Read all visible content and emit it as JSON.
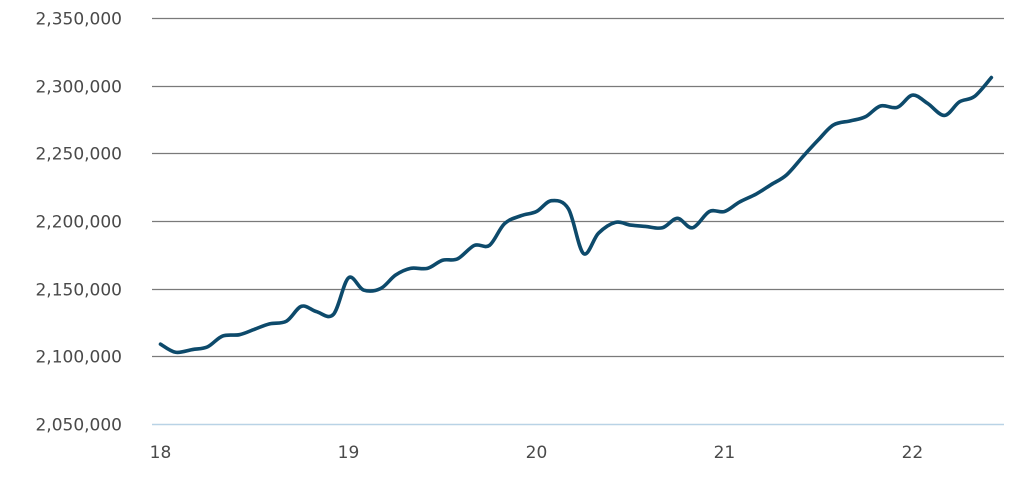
{
  "colors": {
    "line": "#0d4a6b",
    "grid": "#7a7a7a",
    "baseline": "#b9d3e6",
    "text": "#4a4a4a"
  },
  "chart_data": {
    "type": "line",
    "title": "",
    "xlabel": "",
    "ylabel": "",
    "grid": true,
    "xlim": [
      18,
      22.45
    ],
    "ylim": [
      2050000,
      2350000
    ],
    "x_ticks": [
      18,
      19,
      20,
      21,
      22
    ],
    "x_tick_labels": [
      "18",
      "19",
      "20",
      "21",
      "22"
    ],
    "y_ticks": [
      2050000,
      2100000,
      2150000,
      2200000,
      2250000,
      2300000,
      2350000
    ],
    "y_tick_labels": [
      "2,050,000",
      "2,100,000",
      "2,150,000",
      "2,200,000",
      "2,250,000",
      "2,300,000",
      "2,350,000"
    ],
    "series": [
      {
        "values": [
          [
            18.0,
            2109000
          ],
          [
            18.08,
            2103000
          ],
          [
            18.17,
            2105000
          ],
          [
            18.25,
            2107000
          ],
          [
            18.33,
            2115000
          ],
          [
            18.42,
            2116000
          ],
          [
            18.5,
            2120000
          ],
          [
            18.58,
            2124000
          ],
          [
            18.67,
            2126000
          ],
          [
            18.75,
            2137000
          ],
          [
            18.83,
            2133000
          ],
          [
            18.92,
            2131000
          ],
          [
            19.0,
            2158000
          ],
          [
            19.08,
            2149000
          ],
          [
            19.17,
            2150000
          ],
          [
            19.25,
            2160000
          ],
          [
            19.33,
            2165000
          ],
          [
            19.42,
            2165000
          ],
          [
            19.5,
            2171000
          ],
          [
            19.58,
            2172000
          ],
          [
            19.67,
            2182000
          ],
          [
            19.75,
            2182000
          ],
          [
            19.83,
            2198000
          ],
          [
            19.92,
            2204000
          ],
          [
            20.0,
            2207000
          ],
          [
            20.08,
            2215000
          ],
          [
            20.17,
            2209000
          ],
          [
            20.25,
            2176000
          ],
          [
            20.33,
            2191000
          ],
          [
            20.42,
            2199000
          ],
          [
            20.5,
            2197000
          ],
          [
            20.58,
            2196000
          ],
          [
            20.67,
            2195000
          ],
          [
            20.75,
            2202000
          ],
          [
            20.83,
            2195000
          ],
          [
            20.92,
            2207000
          ],
          [
            21.0,
            2207000
          ],
          [
            21.08,
            2214000
          ],
          [
            21.17,
            2220000
          ],
          [
            21.25,
            2227000
          ],
          [
            21.33,
            2234000
          ],
          [
            21.42,
            2248000
          ],
          [
            21.5,
            2260000
          ],
          [
            21.58,
            2271000
          ],
          [
            21.67,
            2274000
          ],
          [
            21.75,
            2277000
          ],
          [
            21.83,
            2285000
          ],
          [
            21.92,
            2284000
          ],
          [
            22.0,
            2293000
          ],
          [
            22.08,
            2287000
          ],
          [
            22.17,
            2278000
          ],
          [
            22.25,
            2288000
          ],
          [
            22.33,
            2292000
          ],
          [
            22.42,
            2306000
          ]
        ]
      }
    ]
  }
}
